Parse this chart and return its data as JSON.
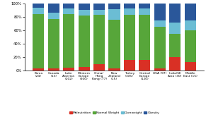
{
  "categories": [
    "Korea\n(24)",
    "Canada\n(13)",
    "Latin\nAmerica\n(202)",
    "Western\nEurope\n(300)",
    "China/\nHong\nKong (77)",
    "New\nZealand\n(15)",
    "Turkey\n(105)",
    "Central\nEurope\n(120)",
    "USA (97)",
    "India/SE\nAsia (30)",
    "Middle\nEast (15)"
  ],
  "malnutrition": [
    4,
    4,
    5,
    6,
    10,
    4,
    16,
    16,
    3,
    20,
    13
  ],
  "normal_weight": [
    80,
    73,
    79,
    76,
    73,
    72,
    67,
    67,
    62,
    35,
    47
  ],
  "overweight": [
    10,
    10,
    9,
    9,
    8,
    16,
    10,
    10,
    10,
    17,
    15
  ],
  "obesity": [
    6,
    13,
    7,
    9,
    9,
    8,
    7,
    7,
    25,
    28,
    25
  ],
  "colors": {
    "malnutrition": "#d93025",
    "normal_weight": "#57a63a",
    "overweight": "#6bbdd4",
    "obesity": "#2a579a"
  },
  "legend_labels": [
    "Malnutrition",
    "Normal Weight",
    "Overweight",
    "Obesity"
  ],
  "ylim": [
    0,
    100
  ],
  "yticks": [
    0,
    20,
    40,
    60,
    80,
    100
  ],
  "ytick_labels": [
    "0%",
    "20%",
    "40%",
    "60%",
    "80%",
    "100%"
  ],
  "bar_width": 0.75,
  "fig_width": 2.91,
  "fig_height": 1.73,
  "dpi": 100
}
